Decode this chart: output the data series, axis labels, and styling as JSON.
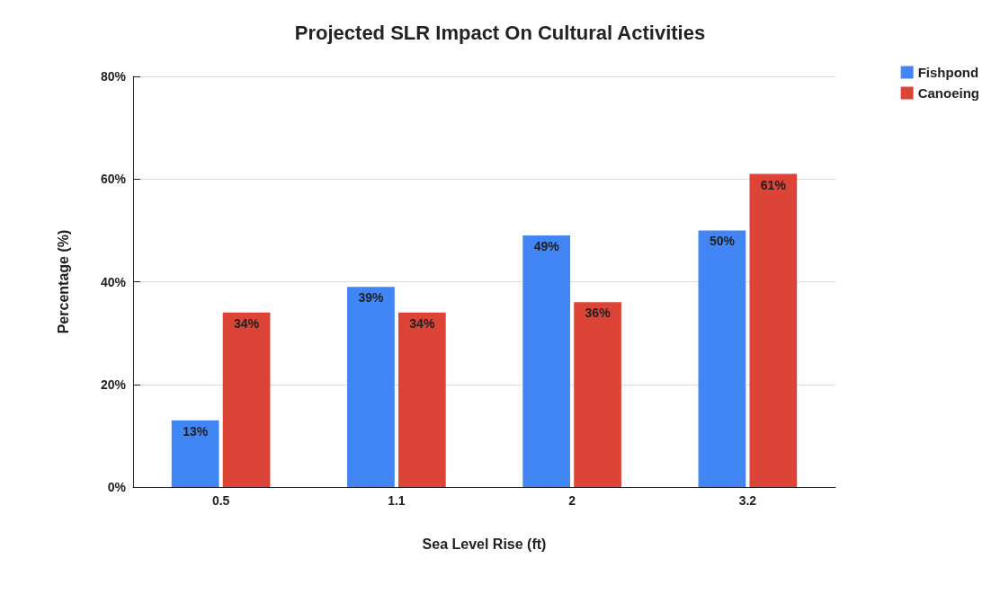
{
  "chart_data": {
    "type": "bar",
    "title": "Projected SLR Impact On Cultural Activities",
    "xlabel": "Sea Level Rise (ft)",
    "ylabel": "Percentage (%)",
    "categories": [
      "0.5",
      "1.1",
      "2",
      "3.2"
    ],
    "series": [
      {
        "name": "Fishpond",
        "color": "#4285f4",
        "values": [
          13,
          39,
          49,
          50
        ],
        "value_labels": [
          "13%",
          "39%",
          "49%",
          "50%"
        ]
      },
      {
        "name": "Canoeing",
        "color": "#db4437",
        "values": [
          34,
          34,
          36,
          61
        ],
        "value_labels": [
          "34%",
          "34%",
          "36%",
          "61%"
        ]
      }
    ],
    "ylim": [
      0,
      80
    ],
    "yticks": [
      {
        "value": 0,
        "label": "0%"
      },
      {
        "value": 20,
        "label": "20%"
      },
      {
        "value": 40,
        "label": "40%"
      },
      {
        "value": 60,
        "label": "60%"
      },
      {
        "value": 80,
        "label": "80%"
      }
    ],
    "grid": "y",
    "legend": "top right"
  }
}
